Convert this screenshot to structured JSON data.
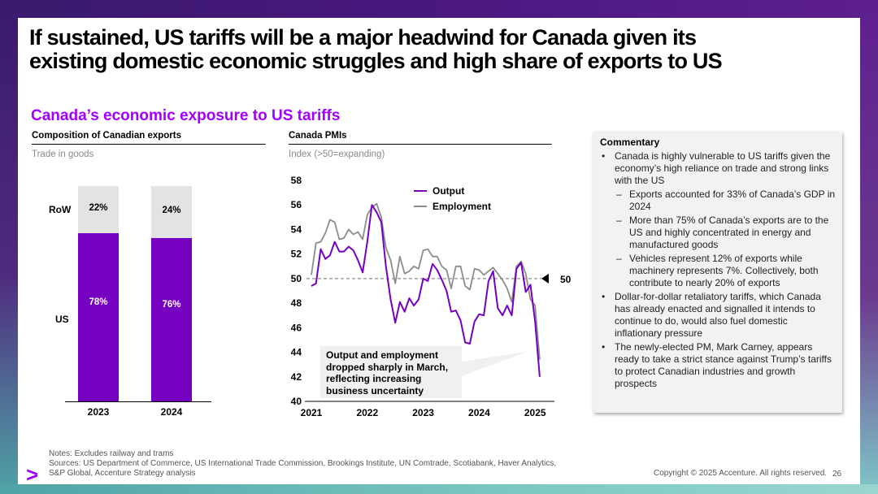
{
  "slide": {
    "title_line1": "If sustained, US tariffs will be a major headwind for Canada given its",
    "title_line2": "existing domestic economic struggles and high share of exports to US",
    "subtitle": "Canada’s economic exposure to US tariffs"
  },
  "colors": {
    "accent": "#a100ff",
    "bar_us": "#7500c0",
    "bar_row": "#e3e3e3",
    "employment": "#8c8c8c"
  },
  "exports_panel": {
    "heading": "Composition of Canadian exports",
    "subheading": "Trade in goods"
  },
  "pmi_panel": {
    "heading": "Canada PMIs",
    "subheading": "Index (>50=expanding)"
  },
  "chart_data": [
    {
      "type": "bar",
      "stacked": true,
      "title": "Composition of Canadian exports",
      "subtitle": "Trade in goods",
      "categories": [
        "2023",
        "2024"
      ],
      "series": [
        {
          "name": "US",
          "values": [
            78,
            76
          ],
          "labels": [
            "78%",
            "76%"
          ]
        },
        {
          "name": "RoW",
          "values": [
            22,
            24
          ],
          "labels": [
            "22%",
            "24%"
          ]
        }
      ],
      "ylim": [
        0,
        100
      ]
    },
    {
      "type": "line",
      "title": "Canada PMIs",
      "subtitle": "Index (>50=expanding)",
      "ylim": [
        40,
        58
      ],
      "yticks": [
        "40",
        "42",
        "44",
        "46",
        "48",
        "50",
        "52",
        "54",
        "56",
        "58"
      ],
      "xticks": [
        "2021",
        "2022",
        "2023",
        "2024",
        "2025"
      ],
      "x_start": 2021.0,
      "x_step_months": 1,
      "series": [
        {
          "name": "Output",
          "values": [
            49.4,
            49.6,
            52.4,
            51.6,
            51.9,
            53.0,
            52.2,
            52.2,
            52.6,
            52.3,
            51.5,
            50.5,
            53.0,
            56.0,
            55.4,
            54.6,
            51.0,
            48.3,
            46.4,
            48.1,
            47.3,
            48.4,
            47.8,
            48.3,
            50.0,
            49.8,
            51.2,
            50.7,
            49.9,
            49.0,
            47.3,
            47.4,
            46.6,
            44.8,
            44.7,
            46.5,
            47.1,
            47.0,
            49.8,
            50.6,
            47.6,
            47.0,
            47.8,
            47.0,
            50.8,
            51.3,
            48.9,
            49.5,
            46.5,
            42.0
          ]
        },
        {
          "name": "Employment",
          "values": [
            50.3,
            52.9,
            53.0,
            53.7,
            54.8,
            54.6,
            53.2,
            53.3,
            54.0,
            53.6,
            53.8,
            53.2,
            55.2,
            55.8,
            56.1,
            55.0,
            52.5,
            51.5,
            49.6,
            51.8,
            50.4,
            50.6,
            51.0,
            50.8,
            52.3,
            52.4,
            51.8,
            51.8,
            51.0,
            50.7,
            49.2,
            51.0,
            51.0,
            49.4,
            49.1,
            50.8,
            50.7,
            50.3,
            50.6,
            50.9,
            50.4,
            49.9,
            49.2,
            48.1,
            51.0,
            51.4,
            50.4,
            48.3,
            47.8,
            43.4
          ]
        }
      ],
      "reference_line": {
        "value": 50,
        "label": "50"
      },
      "annotation": "Output and employment dropped sharply in March, reflecting increasing business uncertainty"
    }
  ],
  "commentary": {
    "heading": "Commentary",
    "items": [
      {
        "level": 1,
        "text": "Canada is highly vulnerable to US tariffs given the economy’s high reliance on trade and strong links with the US"
      },
      {
        "level": 2,
        "text": "Exports accounted for 33% of Canada’s GDP in 2024"
      },
      {
        "level": 2,
        "text": "More than 75% of Canada’s exports are to the US and highly concentrated in energy and manufactured goods"
      },
      {
        "level": 2,
        "text": "Vehicles represent 12% of exports while machinery represents 7%. Collectively, both contribute to nearly 20% of exports"
      },
      {
        "level": 1,
        "text": "Dollar-for-dollar retaliatory tariffs, which Canada has already enacted and signalled it intends to continue to do, would also fuel domestic inflationary pressure"
      },
      {
        "level": 1,
        "text": "The newly-elected PM, Mark Carney, appears ready to take a strict stance against Trump’s tariffs to protect Canadian industries and growth prospects"
      }
    ]
  },
  "footer": {
    "notes": "Notes: Excludes railway and trams",
    "sources_line1": "Sources: US Department of Commerce, US International Trade Commission, Brookings Institute, UN Comtrade, Scotiabank, Haver Analytics,",
    "sources_line2": "S&P Global, Accenture Strategy analysis",
    "logo_glyph": ">",
    "copyright": "Copyright © 2025 Accenture. All rights reserved.",
    "page_number": "26"
  }
}
